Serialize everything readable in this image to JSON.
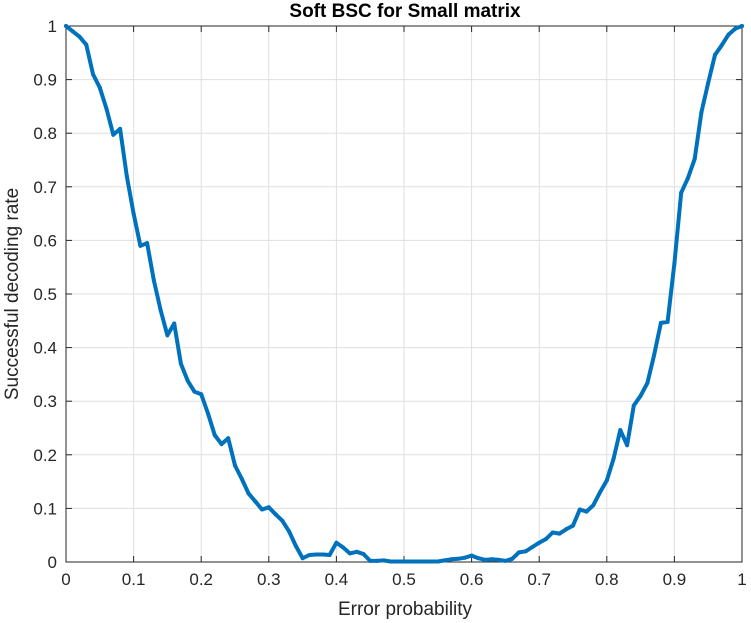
{
  "chart_data": {
    "type": "line",
    "title": "Soft BSC for Small matrix",
    "xlabel": "Error probability",
    "ylabel": "Successful decoding rate",
    "xlim": [
      0,
      1
    ],
    "ylim": [
      0,
      1
    ],
    "grid": true,
    "line_color": "#0072BD",
    "x_ticks": [
      "0",
      "0.1",
      "0.2",
      "0.3",
      "0.4",
      "0.5",
      "0.6",
      "0.7",
      "0.8",
      "0.9",
      "1"
    ],
    "y_ticks": [
      "0",
      "0.1",
      "0.2",
      "0.3",
      "0.4",
      "0.5",
      "0.6",
      "0.7",
      "0.8",
      "0.9",
      "1"
    ],
    "series": [
      {
        "x": [
          0,
          0.01,
          0.02,
          0.03,
          0.04,
          0.05,
          0.06,
          0.07,
          0.08,
          0.09,
          0.1,
          0.11,
          0.12,
          0.13,
          0.14,
          0.15,
          0.16,
          0.17,
          0.18,
          0.19,
          0.2,
          0.21,
          0.22,
          0.23,
          0.24,
          0.25,
          0.26,
          0.27,
          0.28,
          0.29,
          0.3,
          0.31,
          0.32,
          0.33,
          0.34,
          0.35,
          0.36,
          0.37,
          0.38,
          0.39,
          0.4,
          0.41,
          0.42,
          0.43,
          0.44,
          0.45,
          0.46,
          0.47,
          0.48,
          0.49,
          0.5,
          0.51,
          0.52,
          0.53,
          0.54,
          0.55,
          0.56,
          0.57,
          0.58,
          0.59,
          0.6,
          0.61,
          0.62,
          0.63,
          0.64,
          0.65,
          0.66,
          0.67,
          0.68,
          0.69,
          0.7,
          0.71,
          0.72,
          0.73,
          0.74,
          0.75,
          0.76,
          0.77,
          0.78,
          0.79,
          0.8,
          0.81,
          0.82,
          0.83,
          0.84,
          0.85,
          0.86,
          0.87,
          0.88,
          0.89,
          0.9,
          0.91,
          0.92,
          0.93,
          0.94,
          0.95,
          0.96,
          0.97,
          0.98,
          0.99,
          1.0
        ],
        "y": [
          1,
          0.99,
          0.98,
          0.965,
          0.91,
          0.885,
          0.845,
          0.797,
          0.808,
          0.72,
          0.65,
          0.59,
          0.595,
          0.525,
          0.47,
          0.423,
          0.445,
          0.37,
          0.338,
          0.318,
          0.313,
          0.277,
          0.237,
          0.22,
          0.231,
          0.18,
          0.155,
          0.128,
          0.113,
          0.098,
          0.102,
          0.089,
          0.077,
          0.057,
          0.03,
          0.007,
          0.013,
          0.014,
          0.014,
          0.013,
          0.036,
          0.027,
          0.016,
          0.019,
          0.015,
          0.002,
          0.002,
          0.003,
          0.001,
          0.001,
          0.001,
          0.001,
          0.001,
          0.001,
          0.001,
          0.001,
          0.003,
          0.005,
          0.006,
          0.008,
          0.012,
          0.007,
          0.004,
          0.005,
          0.004,
          0.002,
          0.006,
          0.018,
          0.02,
          0.028,
          0.036,
          0.043,
          0.055,
          0.053,
          0.061,
          0.068,
          0.098,
          0.094,
          0.106,
          0.13,
          0.152,
          0.193,
          0.246,
          0.218,
          0.292,
          0.31,
          0.334,
          0.386,
          0.446,
          0.448,
          0.557,
          0.689,
          0.716,
          0.752,
          0.839,
          0.894,
          0.946,
          0.964,
          0.984,
          0.995,
          1.0
        ]
      }
    ]
  }
}
